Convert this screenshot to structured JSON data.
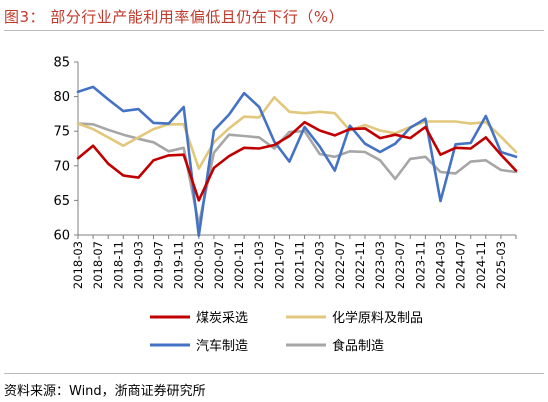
{
  "figure": {
    "title": "图3：  部分行业产能利用率偏低且仍在下行（%）",
    "source": "资料来源：Wind，浙商证券研究所"
  },
  "chart_data": {
    "type": "line",
    "title": "部分行业产能利用率偏低且仍在下行（%）",
    "xlabel": "",
    "ylabel": "",
    "ylim": [
      60,
      85
    ],
    "yticks": [
      60,
      65,
      70,
      75,
      80,
      85
    ],
    "grid": false,
    "legend_position": "bottom",
    "x": [
      "2018-03",
      "2018-06",
      "2018-09",
      "2018-12",
      "2019-03",
      "2019-06",
      "2019-09",
      "2019-12",
      "2020-03",
      "2020-06",
      "2020-09",
      "2020-12",
      "2021-03",
      "2021-06",
      "2021-09",
      "2021-12",
      "2022-03",
      "2022-06",
      "2022-09",
      "2022-12",
      "2023-03",
      "2023-06",
      "2023-09",
      "2023-12",
      "2024-03",
      "2024-06",
      "2024-09",
      "2024-12",
      "2025-03",
      "2025-06"
    ],
    "xtick_labels": [
      "2018-03",
      "2018-07",
      "2018-11",
      "2019-03",
      "2019-07",
      "2019-11",
      "2020-03",
      "2020-07",
      "2020-11",
      "2021-03",
      "2021-07",
      "2021-11",
      "2022-03",
      "2022-07",
      "2022-11",
      "2023-03",
      "2023-07",
      "2023-11",
      "2024-03",
      "2024-07",
      "2024-11",
      "2025-03"
    ],
    "series": [
      {
        "name": "煤炭采选",
        "color": "#c00000",
        "values": [
          71.1,
          72.9,
          70.3,
          68.6,
          68.3,
          70.8,
          71.5,
          71.6,
          65.0,
          69.7,
          71.4,
          72.6,
          72.5,
          73.0,
          74.3,
          76.3,
          75.1,
          74.4,
          75.3,
          75.4,
          74.0,
          74.5,
          74.0,
          75.6,
          71.6,
          72.6,
          72.5,
          74.1,
          71.6,
          69.3
        ]
      },
      {
        "name": "化学原料及制品",
        "color": "#e2c87d",
        "values": [
          76.1,
          75.3,
          74.1,
          72.9,
          74.1,
          75.3,
          76.0,
          76.0,
          69.6,
          73.4,
          75.4,
          77.1,
          77.0,
          79.9,
          77.8,
          77.6,
          77.8,
          77.6,
          75.1,
          75.9,
          75.1,
          74.7,
          75.6,
          76.4,
          76.4,
          76.4,
          76.1,
          76.3,
          74.2,
          72.0
        ]
      },
      {
        "name": "汽车制造",
        "color": "#4472c4",
        "values": [
          80.7,
          81.4,
          79.6,
          77.9,
          78.2,
          76.2,
          76.1,
          78.5,
          59.9,
          75.1,
          77.4,
          80.5,
          78.5,
          73.5,
          70.6,
          75.6,
          72.8,
          69.3,
          75.8,
          73.2,
          72.0,
          73.2,
          75.5,
          76.8,
          64.9,
          73.1,
          73.3,
          77.2,
          72.0,
          71.3
        ]
      },
      {
        "name": "食品制造",
        "color": "#a6a6a6",
        "values": [
          76.1,
          76.0,
          75.2,
          74.5,
          73.9,
          73.4,
          72.1,
          72.6,
          61.5,
          71.9,
          74.5,
          74.3,
          74.1,
          72.5,
          74.9,
          75.0,
          71.7,
          71.3,
          72.1,
          72.0,
          70.8,
          68.1,
          71.0,
          71.3,
          69.1,
          68.9,
          70.6,
          70.8,
          69.4,
          69.1
        ]
      }
    ]
  }
}
